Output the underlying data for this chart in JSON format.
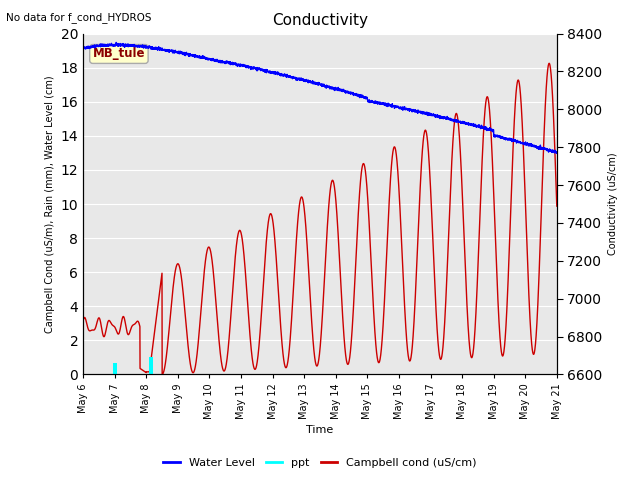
{
  "title": "Conductivity",
  "top_left_text": "No data for f_cond_HYDROS",
  "annotation_box": "MB_tule",
  "xlabel": "Time",
  "ylabel_left": "Campbell Cond (uS/m), Rain (mm), Water Level (cm)",
  "ylabel_right": "Conductivity (uS/cm)",
  "ylim_left": [
    0,
    20
  ],
  "ylim_right": [
    6600,
    8400
  ],
  "plot_bg_color": "#e8e8e8",
  "water_level_color": "#0000ff",
  "ppt_color": "#00ffff",
  "campbell_color": "#cc0000",
  "legend_labels": [
    "Water Level",
    "ppt",
    "Campbell cond (uS/cm)"
  ],
  "legend_colors": [
    "#0000ff",
    "#00ffff",
    "#cc0000"
  ],
  "yticks_left": [
    0,
    2,
    4,
    6,
    8,
    10,
    12,
    14,
    16,
    18,
    20
  ],
  "yticks_right": [
    6600,
    6800,
    7000,
    7200,
    7400,
    7600,
    7800,
    8000,
    8200,
    8400
  ],
  "xtick_labels": [
    "May 6",
    "May 7",
    "May 8",
    "May 9",
    "May 10",
    "May 11",
    "May 12",
    "May 13",
    "May 14",
    "May 15",
    "May 16",
    "May 17",
    "May 18",
    "May 19",
    "May 20",
    "May 21"
  ],
  "ppt_days": [
    1.0,
    2.15
  ],
  "ppt_vals": [
    0.65,
    1.0
  ]
}
